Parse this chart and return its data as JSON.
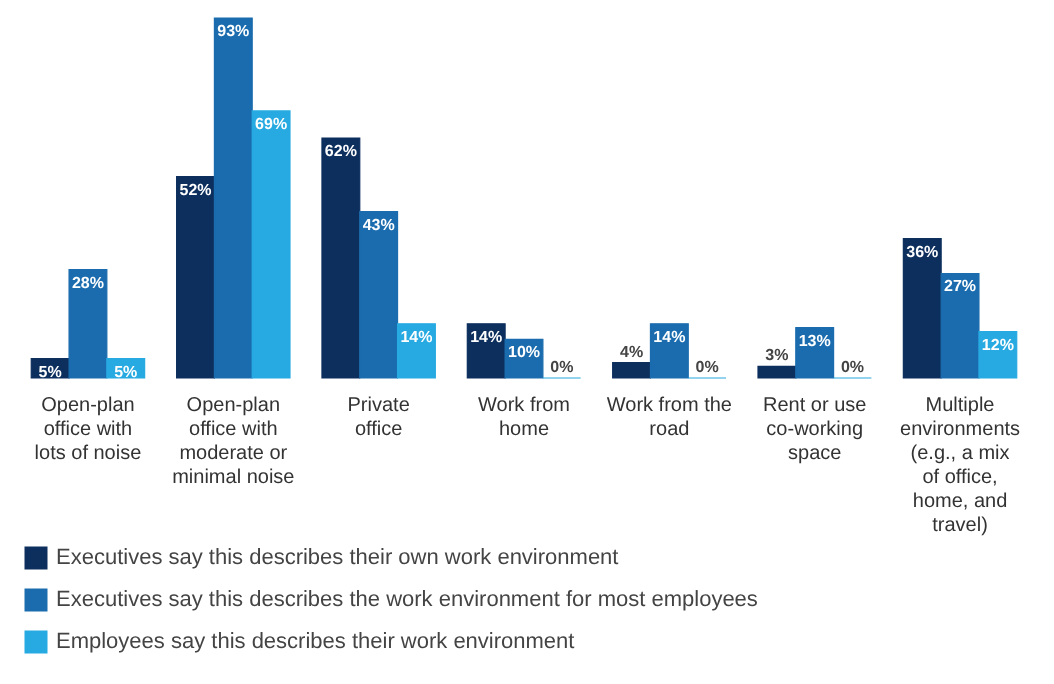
{
  "chart_data": {
    "type": "bar",
    "categories": [
      "Open-plan office with lots of noise",
      "Open-plan office with moderate or minimal noise",
      "Private office",
      "Work from home",
      "Work from the road",
      "Rent or use co-working space",
      "Multiple environments (e.g., a mix of office, home, and travel)"
    ],
    "series": [
      {
        "name": "Executives say this describes their own work environment",
        "color": "#0d2f5e",
        "values": [
          5,
          52,
          62,
          14,
          4,
          3,
          36
        ],
        "value_labels": [
          "5%",
          "52%",
          "62%",
          "14%",
          "4%",
          "3%",
          "36%"
        ]
      },
      {
        "name": "Executives say this describes the work environment for most employees",
        "color": "#1b6cae",
        "values": [
          28,
          93,
          43,
          10,
          14,
          13,
          27
        ],
        "value_labels": [
          "28%",
          "93%",
          "43%",
          "10%",
          "14%",
          "13%",
          "27%"
        ]
      },
      {
        "name": "Employees say this describes their work environment",
        "color": "#27aae1",
        "values": [
          5,
          69,
          14,
          0,
          0,
          0,
          12
        ],
        "value_labels": [
          "5%",
          "69%",
          "14%",
          "0%",
          "0%",
          "0%",
          "12%"
        ]
      }
    ],
    "legend": "bottom"
  }
}
